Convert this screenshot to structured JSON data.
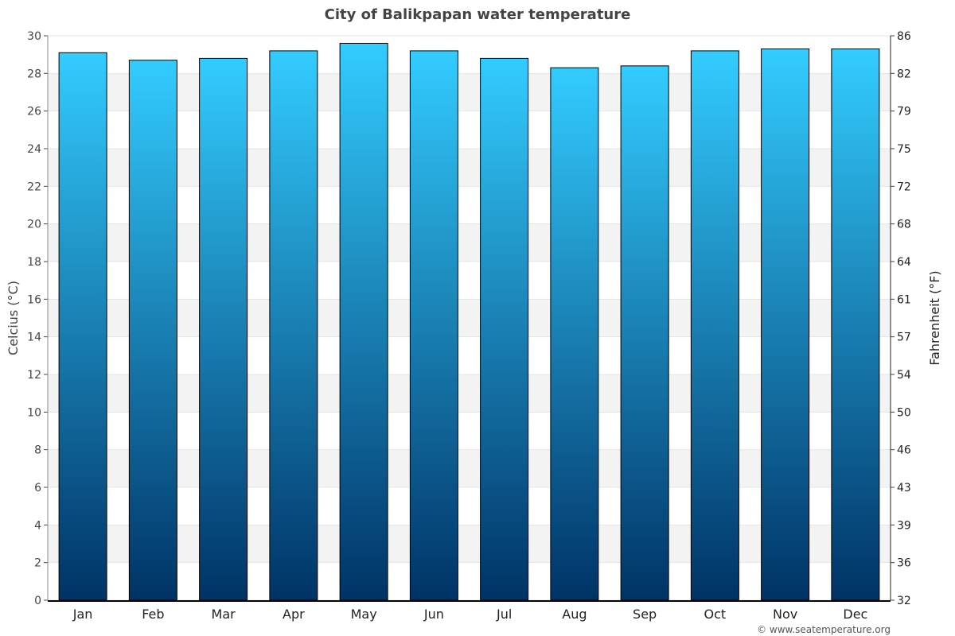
{
  "chart_data": {
    "type": "bar",
    "title": "City of Balikpapan water temperature",
    "categories": [
      "Jan",
      "Feb",
      "Mar",
      "Apr",
      "May",
      "Jun",
      "Jul",
      "Aug",
      "Sep",
      "Oct",
      "Nov",
      "Dec"
    ],
    "values": [
      29.1,
      28.7,
      28.8,
      29.2,
      29.6,
      29.2,
      28.8,
      28.3,
      28.4,
      29.2,
      29.3,
      29.3
    ],
    "ylabel": "Celcius (°C)",
    "y2label": "Fahrenheit (°F)",
    "ylim": [
      0,
      30
    ],
    "yticks": [
      "0",
      "2",
      "4",
      "6",
      "8",
      "10",
      "12",
      "14",
      "16",
      "18",
      "20",
      "22",
      "24",
      "26",
      "28",
      "30"
    ],
    "y2ticks": [
      "32",
      "36",
      "39",
      "43",
      "46",
      "50",
      "54",
      "57",
      "61",
      "64",
      "68",
      "72",
      "75",
      "79",
      "82",
      "86"
    ],
    "grid": true,
    "bar_color_top": "#33ccff",
    "bar_color_bottom": "#003366",
    "band_color": "#f3f3f3"
  },
  "footer": "© www.seatemperature.org"
}
